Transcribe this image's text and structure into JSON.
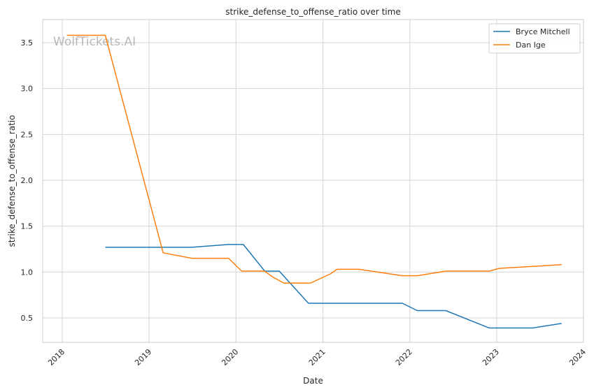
{
  "chart_data": {
    "type": "line",
    "title": "strike_defense_to_offense_ratio over time",
    "xlabel": "Date",
    "ylabel": "strike_defense_to_offense_ratio",
    "watermark": "WolfTickets.AI",
    "x_ticks": [
      "2018",
      "2019",
      "2020",
      "2021",
      "2022",
      "2023",
      "2024"
    ],
    "y_ticks": [
      "0.5",
      "1.0",
      "1.5",
      "2.0",
      "2.5",
      "3.0",
      "3.5"
    ],
    "xlim": [
      "2017-11-23",
      "2024-00-00"
    ],
    "ylim": [
      0.22,
      3.74
    ],
    "grid": true,
    "legend_position": "top-right",
    "series": [
      {
        "name": "Bryce Mitchell",
        "color": "#1f77b4",
        "points": [
          [
            "2018-07-01",
            1.27
          ],
          [
            "2019-06-29",
            1.27
          ],
          [
            "2019-12-01",
            1.3
          ],
          [
            "2020-02-01",
            1.3
          ],
          [
            "2020-05-01",
            1.01
          ],
          [
            "2020-07-01",
            1.01
          ],
          [
            "2020-11-01",
            0.66
          ],
          [
            "2021-12-01",
            0.66
          ],
          [
            "2022-02-01",
            0.58
          ],
          [
            "2022-06-01",
            0.58
          ],
          [
            "2022-12-01",
            0.39
          ],
          [
            "2023-06-01",
            0.39
          ],
          [
            "2023-10-01",
            0.44
          ]
        ]
      },
      {
        "name": "Dan Ige",
        "color": "#ff7f0e",
        "points": [
          [
            "2018-01-20",
            3.58
          ],
          [
            "2018-07-01",
            3.58
          ],
          [
            "2019-03-01",
            1.21
          ],
          [
            "2019-06-29",
            1.15
          ],
          [
            "2019-12-01",
            1.15
          ],
          [
            "2020-01-25",
            1.01
          ],
          [
            "2020-05-01",
            1.01
          ],
          [
            "2020-06-01",
            0.95
          ],
          [
            "2020-07-20",
            0.88
          ],
          [
            "2020-11-10",
            0.88
          ],
          [
            "2021-02-01",
            0.98
          ],
          [
            "2021-03-01",
            1.03
          ],
          [
            "2021-06-01",
            1.03
          ],
          [
            "2021-12-01",
            0.96
          ],
          [
            "2022-02-01",
            0.96
          ],
          [
            "2022-06-01",
            1.01
          ],
          [
            "2022-12-01",
            1.01
          ],
          [
            "2023-01-10",
            1.04
          ],
          [
            "2023-10-01",
            1.08
          ]
        ]
      }
    ]
  }
}
